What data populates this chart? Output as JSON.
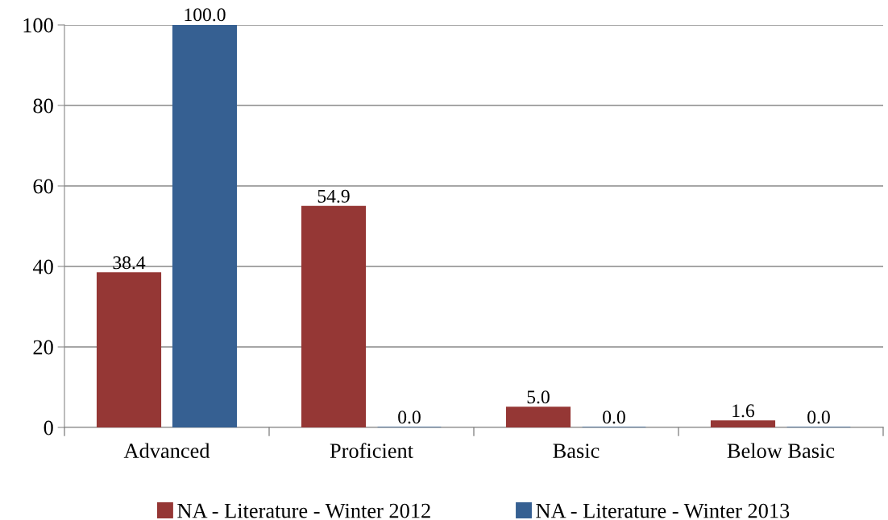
{
  "chart_data": {
    "type": "bar",
    "categories": [
      "Advanced",
      "Proficient",
      "Basic",
      "Below Basic"
    ],
    "series": [
      {
        "name": "NA - Literature - Winter 2012",
        "color": "#953735",
        "values": [
          38.4,
          54.9,
          5.0,
          1.6
        ],
        "value_labels": [
          "38.4",
          "54.9",
          "5.0",
          "1.6"
        ]
      },
      {
        "name": "NA - Literature - Winter 2013",
        "color": "#366092",
        "values": [
          100.0,
          0.0,
          0.0,
          0.0
        ],
        "value_labels": [
          "100.0",
          "0.0",
          "0.0",
          "0.0"
        ]
      }
    ],
    "ylim": [
      0,
      100
    ],
    "yticks": [
      0,
      20,
      40,
      60,
      80,
      100
    ],
    "grid": "y",
    "legend": "bottom"
  }
}
